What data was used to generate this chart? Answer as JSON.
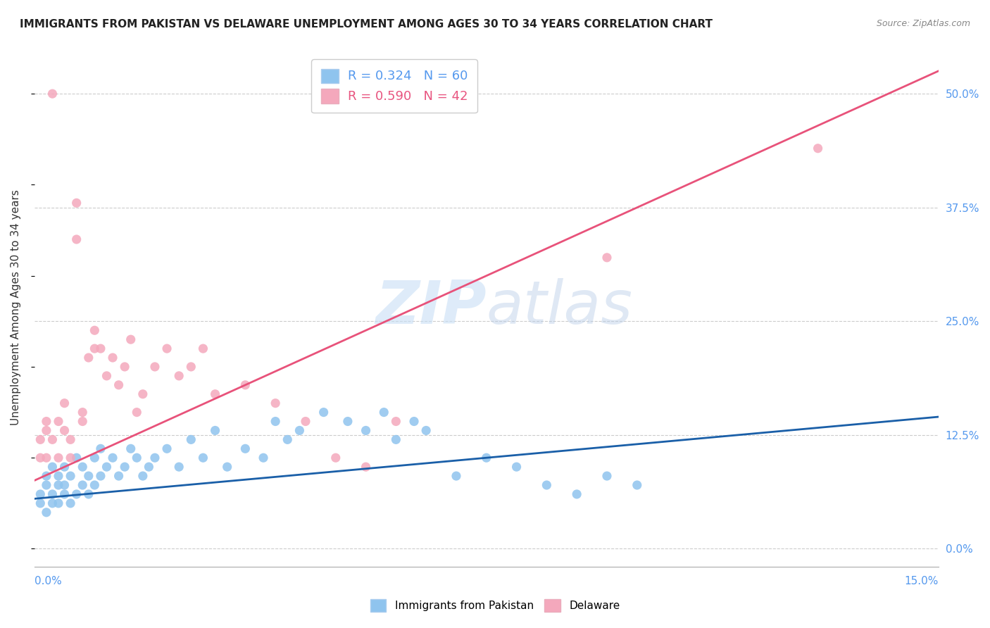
{
  "title": "IMMIGRANTS FROM PAKISTAN VS DELAWARE UNEMPLOYMENT AMONG AGES 30 TO 34 YEARS CORRELATION CHART",
  "source": "Source: ZipAtlas.com",
  "ylabel": "Unemployment Among Ages 30 to 34 years",
  "right_yticks": [
    "0.0%",
    "12.5%",
    "25.0%",
    "37.5%",
    "50.0%"
  ],
  "right_ytick_vals": [
    0.0,
    0.125,
    0.25,
    0.375,
    0.5
  ],
  "xlim": [
    0.0,
    0.15
  ],
  "ylim": [
    -0.02,
    0.55
  ],
  "color_blue": "#8FC4EE",
  "color_pink": "#F4A8BC",
  "color_line_blue": "#1A5FA8",
  "color_line_pink": "#E8527A",
  "watermark_zip": "ZIP",
  "watermark_atlas": "atlas",
  "scatter_blue_x": [
    0.001,
    0.001,
    0.002,
    0.002,
    0.002,
    0.003,
    0.003,
    0.003,
    0.004,
    0.004,
    0.004,
    0.005,
    0.005,
    0.005,
    0.006,
    0.006,
    0.007,
    0.007,
    0.008,
    0.008,
    0.009,
    0.009,
    0.01,
    0.01,
    0.011,
    0.011,
    0.012,
    0.013,
    0.014,
    0.015,
    0.016,
    0.017,
    0.018,
    0.019,
    0.02,
    0.022,
    0.024,
    0.026,
    0.028,
    0.03,
    0.032,
    0.035,
    0.038,
    0.04,
    0.042,
    0.044,
    0.048,
    0.052,
    0.055,
    0.058,
    0.06,
    0.063,
    0.065,
    0.07,
    0.075,
    0.08,
    0.085,
    0.09,
    0.095,
    0.1
  ],
  "scatter_blue_y": [
    0.05,
    0.06,
    0.04,
    0.07,
    0.08,
    0.05,
    0.06,
    0.09,
    0.07,
    0.05,
    0.08,
    0.06,
    0.07,
    0.09,
    0.05,
    0.08,
    0.06,
    0.1,
    0.07,
    0.09,
    0.06,
    0.08,
    0.07,
    0.1,
    0.08,
    0.11,
    0.09,
    0.1,
    0.08,
    0.09,
    0.11,
    0.1,
    0.08,
    0.09,
    0.1,
    0.11,
    0.09,
    0.12,
    0.1,
    0.13,
    0.09,
    0.11,
    0.1,
    0.14,
    0.12,
    0.13,
    0.15,
    0.14,
    0.13,
    0.15,
    0.12,
    0.14,
    0.13,
    0.08,
    0.1,
    0.09,
    0.07,
    0.06,
    0.08,
    0.07
  ],
  "scatter_pink_x": [
    0.001,
    0.001,
    0.002,
    0.002,
    0.002,
    0.003,
    0.003,
    0.004,
    0.004,
    0.005,
    0.005,
    0.006,
    0.006,
    0.007,
    0.007,
    0.008,
    0.008,
    0.009,
    0.01,
    0.01,
    0.011,
    0.012,
    0.013,
    0.014,
    0.015,
    0.016,
    0.017,
    0.018,
    0.02,
    0.022,
    0.024,
    0.026,
    0.028,
    0.03,
    0.035,
    0.04,
    0.045,
    0.05,
    0.055,
    0.06,
    0.095,
    0.13
  ],
  "scatter_pink_y": [
    0.1,
    0.12,
    0.13,
    0.14,
    0.1,
    0.5,
    0.12,
    0.14,
    0.1,
    0.16,
    0.13,
    0.1,
    0.12,
    0.38,
    0.34,
    0.15,
    0.14,
    0.21,
    0.22,
    0.24,
    0.22,
    0.19,
    0.21,
    0.18,
    0.2,
    0.23,
    0.15,
    0.17,
    0.2,
    0.22,
    0.19,
    0.2,
    0.22,
    0.17,
    0.18,
    0.16,
    0.14,
    0.1,
    0.09,
    0.14,
    0.32,
    0.44
  ],
  "blue_line_x": [
    0.0,
    0.15
  ],
  "blue_line_y": [
    0.055,
    0.145
  ],
  "pink_line_x": [
    0.0,
    0.15
  ],
  "pink_line_y": [
    0.075,
    0.525
  ]
}
